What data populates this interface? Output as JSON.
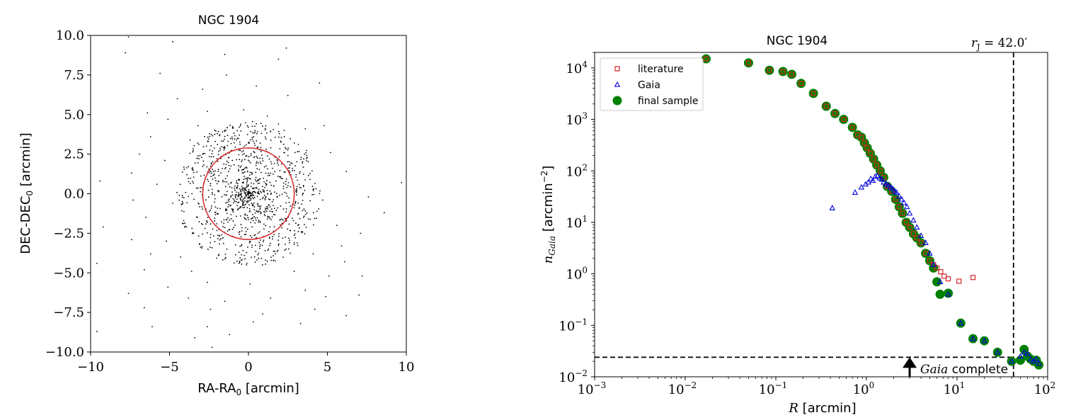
{
  "chart_data": [
    {
      "type": "scatter",
      "title": "NGC 1904",
      "xlabel": "RA-RA",
      "xlabel_sub": "0",
      "xlabel_unit": " [arcmin]",
      "ylabel": "DEC-DEC",
      "ylabel_sub": "0",
      "ylabel_unit": " [arcmin]",
      "xlim": [
        -10,
        10
      ],
      "ylim": [
        -10,
        10
      ],
      "xticks": [
        -10,
        -5,
        0,
        5,
        10
      ],
      "xtick_labels": [
        "−10",
        "−5",
        "0",
        "5",
        "10"
      ],
      "yticks": [
        10,
        7.5,
        5,
        2.5,
        0,
        -2.5,
        -5,
        -7.5,
        -10
      ],
      "ytick_labels": [
        "10.0",
        "7.5",
        "5.0",
        "2.5",
        "0.0",
        "−2.5",
        "−5.0",
        "−7.5",
        "−10.0"
      ],
      "grid": false,
      "circle": {
        "center": [
          0,
          0
        ],
        "radius": 2.9,
        "color": "#d62728"
      },
      "point_color": "#000000",
      "points": [
        [
          -7.6,
          9.9
        ],
        [
          -4.8,
          9.6
        ],
        [
          2.4,
          9.2
        ],
        [
          -7.8,
          8.9
        ],
        [
          -1.5,
          8.8
        ],
        [
          1.9,
          8.5
        ],
        [
          -5.6,
          7.6
        ],
        [
          -1.4,
          7.5
        ],
        [
          4.5,
          7.0
        ],
        [
          0.5,
          6.8
        ],
        [
          -2.9,
          6.6
        ],
        [
          2.5,
          6.2
        ],
        [
          -4.5,
          6.0
        ],
        [
          -6.4,
          5.1
        ],
        [
          -2.6,
          5.2
        ],
        [
          -0.3,
          5.3
        ],
        [
          1.2,
          4.9
        ],
        [
          -5.1,
          4.7
        ],
        [
          -3.2,
          4.3
        ],
        [
          0.4,
          4.0
        ],
        [
          1.9,
          4.4
        ],
        [
          3.6,
          4.1
        ],
        [
          4.8,
          4.3
        ],
        [
          -6.2,
          3.6
        ],
        [
          -3.7,
          3.4
        ],
        [
          -2.1,
          3.3
        ],
        [
          2.9,
          3.2
        ],
        [
          -6.9,
          2.5
        ],
        [
          -5.3,
          2.1
        ],
        [
          -2.9,
          2.5
        ],
        [
          3.5,
          2.2
        ],
        [
          5.2,
          2.6
        ],
        [
          -7.4,
          1.3
        ],
        [
          -5.8,
          0.6
        ],
        [
          -3.9,
          1.2
        ],
        [
          3.9,
          0.9
        ],
        [
          6.2,
          1.4
        ],
        [
          -9.4,
          0.8
        ],
        [
          -7.3,
          -0.4
        ],
        [
          -4.8,
          -0.6
        ],
        [
          4.7,
          -0.4
        ],
        [
          7.6,
          -0.2
        ],
        [
          9.7,
          0.7
        ],
        [
          -9.2,
          -2.1
        ],
        [
          -6.5,
          -1.5
        ],
        [
          -4.1,
          -1.7
        ],
        [
          3.8,
          -1.6
        ],
        [
          5.6,
          -2.0
        ],
        [
          8.6,
          -1.2
        ],
        [
          -7.4,
          -2.9
        ],
        [
          -5.2,
          -3.0
        ],
        [
          -3.1,
          -3.2
        ],
        [
          2.9,
          -3.1
        ],
        [
          5.9,
          -3.3
        ],
        [
          7.1,
          -2.5
        ],
        [
          -6.2,
          -3.8
        ],
        [
          -4.3,
          -4.0
        ],
        [
          -1.9,
          -3.9
        ],
        [
          1.6,
          -4.2
        ],
        [
          4.1,
          -3.8
        ],
        [
          6.1,
          -4.3
        ],
        [
          -9.6,
          -4.4
        ],
        [
          -6.6,
          -4.8
        ],
        [
          -3.6,
          -4.9
        ],
        [
          -0.6,
          -4.4
        ],
        [
          2.9,
          -4.9
        ],
        [
          5.1,
          -5.2
        ],
        [
          -5.1,
          -5.9
        ],
        [
          -2.6,
          -5.6
        ],
        [
          0.1,
          -5.7
        ],
        [
          3.6,
          -6.1
        ],
        [
          7.2,
          -5.2
        ],
        [
          -7.6,
          -6.3
        ],
        [
          -3.8,
          -6.6
        ],
        [
          -1.5,
          -6.8
        ],
        [
          1.4,
          -6.6
        ],
        [
          4.9,
          -6.5
        ],
        [
          7.0,
          -6.4
        ],
        [
          -6.6,
          -7.2
        ],
        [
          -2.4,
          -7.3
        ],
        [
          0.9,
          -7.6
        ],
        [
          4.2,
          -7.3
        ],
        [
          -9.6,
          -8.7
        ],
        [
          -6.1,
          -8.4
        ],
        [
          -2.6,
          -8.4
        ],
        [
          0.3,
          -8.1
        ],
        [
          3.3,
          -8.2
        ],
        [
          6.2,
          -7.7
        ],
        [
          -3.4,
          -9.1
        ],
        [
          -1.2,
          -8.9
        ],
        [
          -2.3,
          -9.7
        ]
      ]
    },
    {
      "type": "scatter",
      "title": "NGC 1904",
      "xlabel": "R",
      "xlabel_unit": " [arcmin]",
      "ylabel": "n",
      "ylabel_sub": "Gaia",
      "ylabel_unit": " [arcmin",
      "ylabel_unit_sup": "−2",
      "ylabel_unit_end": "]",
      "xscale": "log",
      "yscale": "log",
      "xlim": [
        0.001,
        100
      ],
      "ylim": [
        0.01,
        20000
      ],
      "xticks": [
        0.001,
        0.01,
        0.1,
        1,
        10,
        100
      ],
      "xtick_labels": [
        {
          "base": "10",
          "exp": "−3"
        },
        {
          "base": "10",
          "exp": "−2"
        },
        {
          "base": "10",
          "exp": "−1"
        },
        {
          "base": "10",
          "exp": "0"
        },
        {
          "base": "10",
          "exp": "1"
        },
        {
          "base": "10",
          "exp": "2"
        }
      ],
      "yticks": [
        10000,
        1000,
        100,
        10,
        1,
        0.1,
        0.01
      ],
      "ytick_labels": [
        {
          "base": "10",
          "exp": "4"
        },
        {
          "base": "10",
          "exp": "3"
        },
        {
          "base": "10",
          "exp": "2"
        },
        {
          "base": "10",
          "exp": "1"
        },
        {
          "base": "10",
          "exp": "0"
        },
        {
          "base": "10",
          "exp": "−1"
        },
        {
          "base": "10",
          "exp": "−2"
        }
      ],
      "grid": false,
      "legend": {
        "placement": "top-left",
        "entries": [
          {
            "label": "literature",
            "marker": "square",
            "color": "#d62728"
          },
          {
            "label": "Gaia",
            "marker": "triangle",
            "color": "#0000dd"
          },
          {
            "label": "final sample",
            "marker": "circle",
            "color": "#008000"
          }
        ]
      },
      "annotations": {
        "rj_label_pre": "r",
        "rj_label_sub": "J",
        "rj_label_value": " = 42.0′",
        "rj_value": 42.0,
        "complete_label_italic": "Gaia",
        "complete_label_rest": " complete",
        "complete_level": 0.024,
        "arrow_x": 3.0
      },
      "series": [
        {
          "name": "literature",
          "marker": "square",
          "color": "#d62728",
          "x": [
            0.017,
            0.05,
            0.085,
            0.12,
            0.15,
            0.19,
            0.26,
            0.36,
            0.45,
            0.56,
            0.7,
            0.8,
            0.88,
            0.95,
            1.02,
            1.1,
            1.2,
            1.3,
            1.42,
            1.55,
            1.7,
            1.9,
            2.1,
            2.3,
            2.5,
            2.75,
            3.0,
            3.3,
            3.6,
            4.0,
            4.5,
            5.0,
            5.5,
            6.0,
            6.6,
            7.2,
            8.0,
            10.5,
            15.0
          ],
          "y": [
            15000,
            12500,
            9000,
            8500,
            7500,
            5000,
            3200,
            1800,
            1300,
            1000,
            700,
            500,
            450,
            350,
            280,
            220,
            170,
            130,
            100,
            75,
            50,
            40,
            28,
            20,
            15,
            10,
            8,
            6,
            5,
            4,
            2.5,
            1.8,
            1.5,
            1.3,
            1.1,
            0.9,
            0.8,
            0.72,
            0.85
          ]
        },
        {
          "name": "Gaia",
          "marker": "triangle",
          "color": "#0000dd",
          "x": [
            0.42,
            0.75,
            0.88,
            0.98,
            1.05,
            1.12,
            1.18,
            1.25,
            1.32,
            1.4,
            1.48,
            1.55,
            1.65,
            1.75,
            1.85,
            1.95,
            2.05,
            2.15,
            2.3,
            2.45,
            2.6,
            2.8,
            3.0,
            3.3,
            3.6,
            4.0,
            4.5,
            5.0,
            5.5,
            6.5,
            8.0,
            11.0,
            15.0,
            20.0,
            28.0,
            40.0,
            50.0,
            55.0,
            60.0,
            65.0,
            70.0,
            75.0,
            80.0
          ],
          "y": [
            19,
            38,
            48,
            55,
            60,
            70,
            65,
            78,
            80,
            72,
            68,
            60,
            56,
            52,
            48,
            45,
            40,
            38,
            32,
            28,
            24,
            20,
            15,
            11,
            8,
            5.5,
            4,
            2.5,
            1.5,
            0.7,
            0.4,
            0.11,
            0.055,
            0.05,
            0.03,
            0.02,
            0.025,
            0.03,
            0.028,
            0.022,
            0.02,
            0.022,
            0.018
          ]
        },
        {
          "name": "final sample",
          "marker": "circle",
          "color": "#008000",
          "x": [
            0.017,
            0.05,
            0.085,
            0.12,
            0.15,
            0.19,
            0.26,
            0.36,
            0.45,
            0.56,
            0.7,
            0.8,
            0.88,
            0.95,
            1.02,
            1.1,
            1.2,
            1.3,
            1.42,
            1.55,
            1.7,
            1.9,
            2.1,
            2.3,
            2.5,
            2.75,
            3.0,
            3.3,
            3.6,
            4.0,
            4.5,
            5.0,
            5.5,
            6.0,
            6.5,
            8.0,
            11.0,
            15.0,
            20.0,
            28.0,
            40.0,
            50.0,
            55.0,
            60.0,
            65.0,
            70.0,
            75.0,
            80.0
          ],
          "y": [
            15000,
            12500,
            9000,
            8500,
            7500,
            5000,
            3200,
            1800,
            1300,
            1000,
            700,
            500,
            450,
            350,
            280,
            220,
            170,
            130,
            100,
            75,
            50,
            40,
            28,
            20,
            15,
            10,
            8,
            6,
            5,
            4,
            2.5,
            1.8,
            1.3,
            0.7,
            0.4,
            0.42,
            0.11,
            0.055,
            0.05,
            0.03,
            0.02,
            0.021,
            0.034,
            0.025,
            0.022,
            0.02,
            0.021,
            0.017
          ]
        }
      ]
    }
  ]
}
